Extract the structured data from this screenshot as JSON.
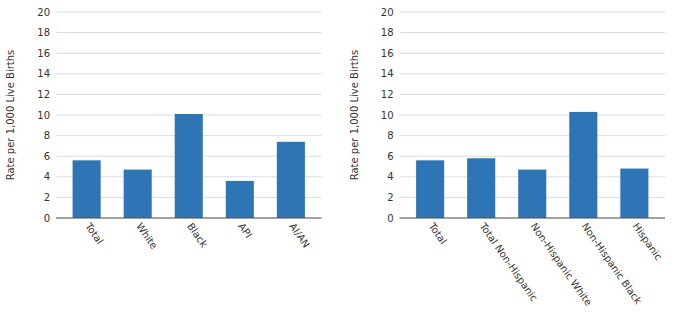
{
  "chart_data": [
    {
      "type": "bar",
      "categories": [
        "Total",
        "White",
        "Black",
        "API",
        "AI/AN"
      ],
      "values": [
        5.6,
        4.7,
        10.1,
        3.6,
        7.4
      ],
      "ylabel": "Rate per 1,000 Live Births",
      "ylim": [
        0,
        20
      ],
      "yticks": [
        0,
        2,
        4,
        6,
        8,
        10,
        12,
        14,
        16,
        18,
        20
      ],
      "color": "#2E75B6",
      "grid": true
    },
    {
      "type": "bar",
      "categories": [
        "Total",
        "Total Non-Hispanic",
        "Non-Hispanic White",
        "Non-Hispanic Black",
        "Hispanic"
      ],
      "values": [
        5.6,
        5.8,
        4.7,
        10.3,
        4.8
      ],
      "ylabel": "Rate per 1,000 Live Births",
      "ylim": [
        0,
        20
      ],
      "yticks": [
        0,
        2,
        4,
        6,
        8,
        10,
        12,
        14,
        16,
        18,
        20
      ],
      "color": "#2E75B6",
      "grid": true
    }
  ]
}
